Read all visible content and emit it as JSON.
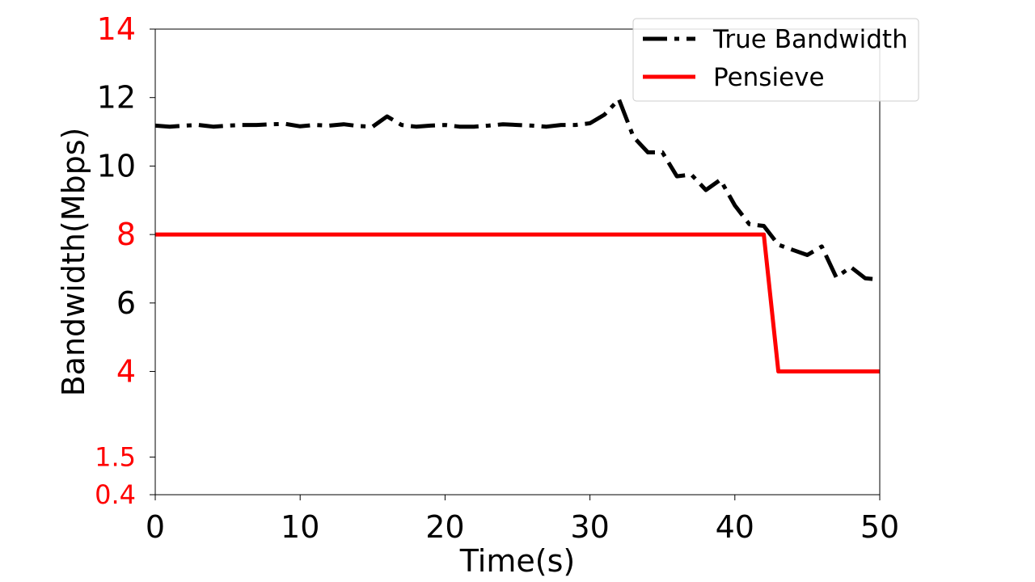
{
  "chart_data": {
    "type": "line",
    "title": "",
    "xlabel": "Time(s)",
    "ylabel": "Bandwidth(Mbps)",
    "xlim": [
      0,
      50
    ],
    "ylim": [
      0.4,
      14
    ],
    "xticks": [
      0,
      10,
      20,
      30,
      40,
      50
    ],
    "yticks": [
      {
        "value": 0.4,
        "label": "0.4",
        "color": "#ff0000"
      },
      {
        "value": 1.5,
        "label": "1.5",
        "color": "#ff0000"
      },
      {
        "value": 4,
        "label": "4",
        "color": "#ff0000"
      },
      {
        "value": 6,
        "label": "6",
        "color": "#000000"
      },
      {
        "value": 8,
        "label": "8",
        "color": "#ff0000"
      },
      {
        "value": 10,
        "label": "10",
        "color": "#000000"
      },
      {
        "value": 12,
        "label": "12",
        "color": "#000000"
      },
      {
        "value": 14,
        "label": "14",
        "color": "#ff0000"
      }
    ],
    "grid": false,
    "legend_position": "top-right",
    "series": [
      {
        "name": "True Bandwidth",
        "color": "#000000",
        "style": "dashdot",
        "x": [
          0,
          1,
          2,
          3,
          4,
          5,
          6,
          7,
          8,
          9,
          10,
          11,
          12,
          13,
          14,
          15,
          16,
          17,
          18,
          19,
          20,
          21,
          22,
          23,
          24,
          25,
          26,
          27,
          28,
          29,
          30,
          31,
          32,
          33,
          34,
          35,
          36,
          37,
          38,
          39,
          40,
          41,
          42,
          43,
          44,
          45,
          46,
          47,
          48,
          49,
          50
        ],
        "y": [
          11.18,
          11.15,
          11.18,
          11.2,
          11.15,
          11.18,
          11.2,
          11.2,
          11.22,
          11.23,
          11.16,
          11.2,
          11.18,
          11.22,
          11.17,
          11.15,
          11.45,
          11.2,
          11.15,
          11.18,
          11.2,
          11.15,
          11.15,
          11.18,
          11.22,
          11.2,
          11.18,
          11.15,
          11.2,
          11.2,
          11.25,
          11.5,
          11.95,
          10.85,
          10.4,
          10.4,
          9.7,
          9.75,
          9.3,
          9.6,
          8.85,
          8.3,
          8.25,
          7.7,
          7.55,
          7.4,
          7.65,
          6.75,
          7.05,
          6.72,
          6.68
        ]
      },
      {
        "name": "Pensieve",
        "color": "#ff0000",
        "style": "solid",
        "x": [
          0,
          42,
          43,
          50
        ],
        "y": [
          8,
          8,
          4,
          4
        ]
      }
    ]
  }
}
